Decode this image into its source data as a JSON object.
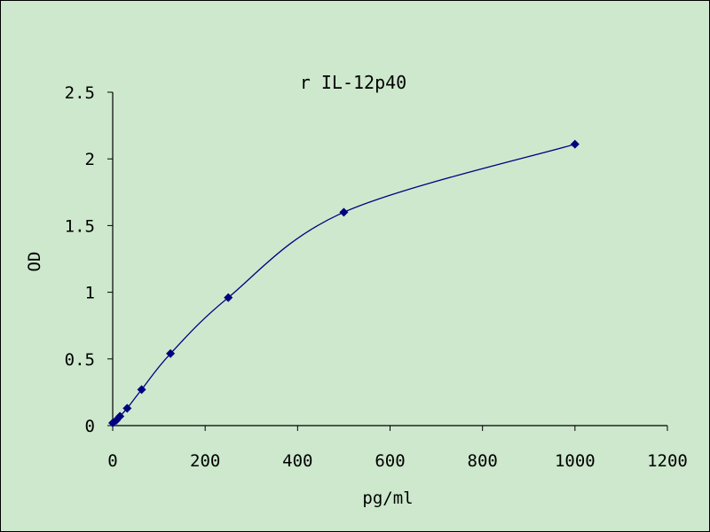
{
  "chart_data": {
    "type": "scatter",
    "title": "r IL-12p40",
    "xlabel": "pg/ml",
    "ylabel": "OD",
    "xlim": [
      0,
      1200
    ],
    "ylim": [
      0,
      2.5
    ],
    "x_ticks": [
      "0",
      "200",
      "400",
      "600",
      "800",
      "1000",
      "1200"
    ],
    "y_ticks": [
      "0",
      "0.5",
      "1",
      "1.5",
      "2",
      "2.5"
    ],
    "grid": false,
    "legend": "none",
    "series": [
      {
        "x": [
          0,
          7.8,
          15.6,
          31.25,
          62.5,
          125,
          250,
          500,
          1000
        ],
        "y": [
          0.02,
          0.04,
          0.07,
          0.13,
          0.27,
          0.54,
          0.96,
          1.6,
          2.11
        ],
        "marker": "diamond",
        "line": "smooth",
        "color": "#000080"
      }
    ]
  }
}
